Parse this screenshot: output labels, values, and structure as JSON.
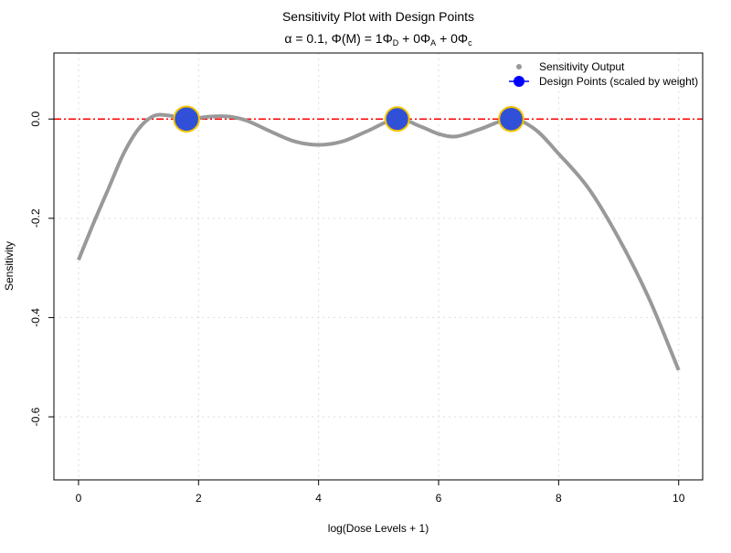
{
  "chart_data": {
    "type": "line",
    "title": "Sensitivity Plot with Design Points",
    "subtitle": {
      "alpha": "α = 0.1, ",
      "phi": "Φ(M) = 1Φ",
      "sub_d": "D",
      "mid1": " + 0Φ",
      "sub_a": "A",
      "mid2": " + 0Φ",
      "sub_c": "c"
    },
    "xlabel": "log(Dose Levels + 1)",
    "ylabel": "Sensitivity",
    "xlim": [
      -0.41,
      10.4
    ],
    "ylim": [
      -0.727,
      0.133
    ],
    "xticks": [
      0,
      2,
      4,
      6,
      8,
      10
    ],
    "xtick_labels": [
      "0",
      "2",
      "4",
      "6",
      "8",
      "10"
    ],
    "yticks": [
      0.0,
      -0.2,
      -0.4,
      -0.6
    ],
    "ytick_labels": [
      "0.0",
      "-0.2",
      "-0.4",
      "-0.6"
    ],
    "grid": true,
    "reference_line": 0,
    "legend": {
      "position": "top-right",
      "entries": [
        "Sensitivity Output",
        "Design Points (scaled by weight)"
      ]
    },
    "series": [
      {
        "name": "Sensitivity Output",
        "color": "#999999",
        "x": [
          0,
          0.25,
          0.5,
          0.75,
          1.0,
          1.25,
          1.5,
          1.8,
          2.2,
          2.5,
          2.8,
          3.2,
          3.6,
          4.0,
          4.4,
          4.8,
          5.3,
          5.7,
          6.0,
          6.3,
          6.7,
          7.2,
          7.6,
          8.0,
          8.5,
          9.0,
          9.5,
          10
        ],
        "y": [
          -0.284,
          -0.21,
          -0.14,
          -0.07,
          -0.02,
          0.006,
          0.007,
          0.0,
          0.005,
          0.005,
          -0.003,
          -0.025,
          -0.045,
          -0.052,
          -0.045,
          -0.025,
          0.0,
          -0.015,
          -0.03,
          -0.035,
          -0.02,
          0.0,
          -0.02,
          -0.07,
          -0.14,
          -0.24,
          -0.36,
          -0.506
        ]
      },
      {
        "name": "Design Points (scaled by weight)",
        "color": "#3050d8",
        "edge": "#f5c400",
        "x": [
          1.8,
          5.31,
          7.21
        ],
        "y": [
          0,
          0,
          0
        ],
        "weight": [
          0.36,
          0.31,
          0.33
        ]
      }
    ]
  }
}
